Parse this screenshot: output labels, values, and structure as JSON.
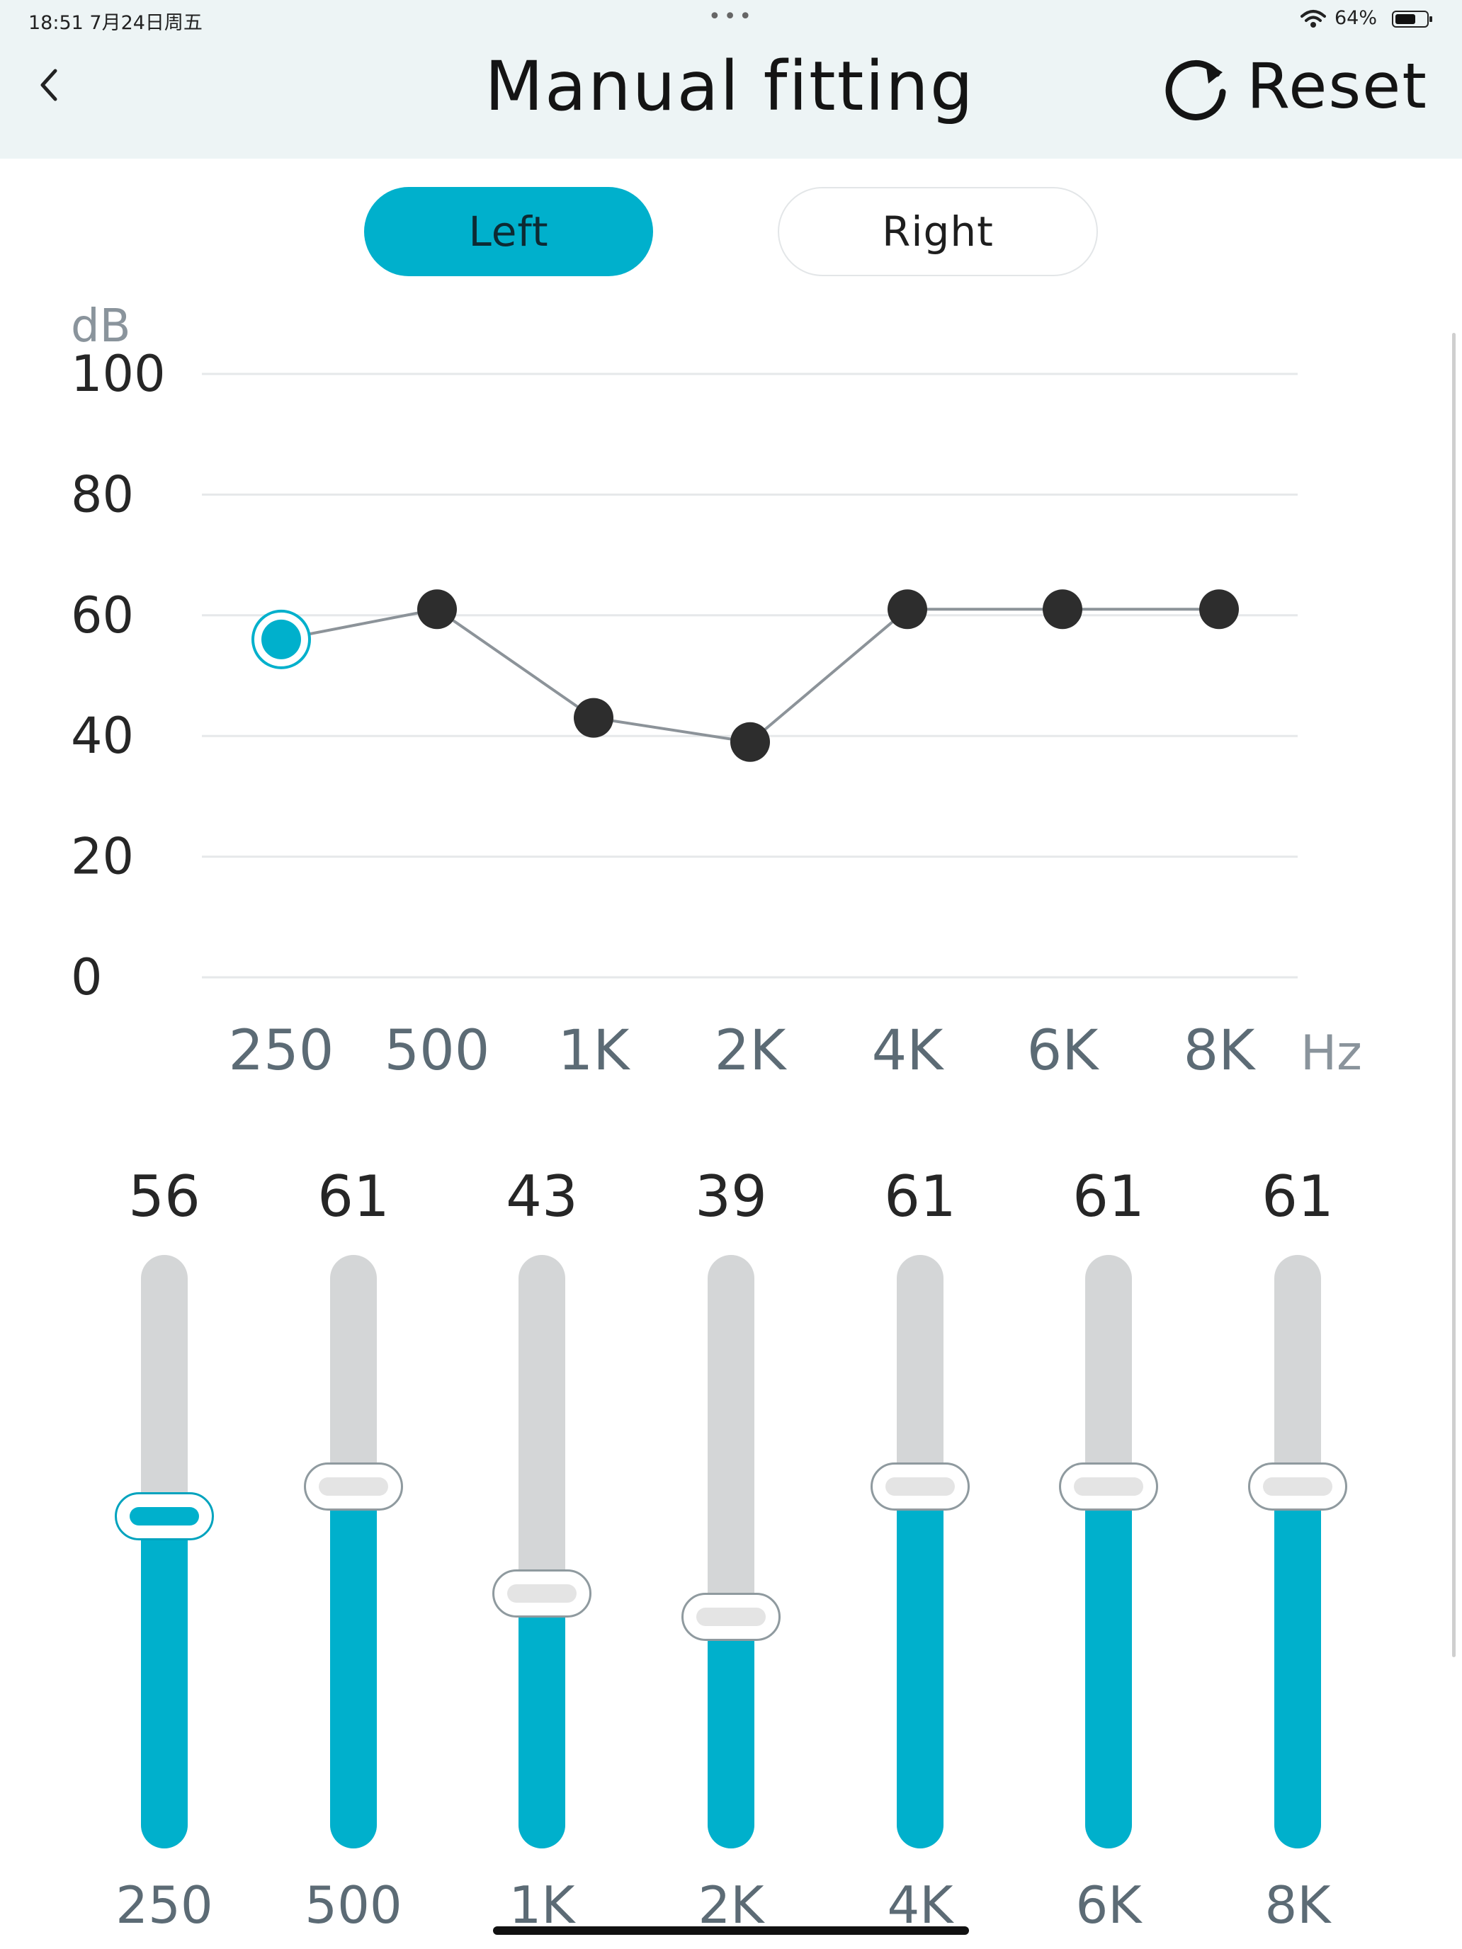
{
  "status_bar": {
    "time": "18:51  7月24日周五",
    "dots": "•••",
    "battery_text": "64%",
    "battery_level": 0.64
  },
  "header": {
    "title": "Manual fitting",
    "back_icon": "chevron-left-icon",
    "reset_icon": "refresh-icon",
    "reset_label": "Reset"
  },
  "tabs": [
    {
      "label": "Left",
      "selected": true
    },
    {
      "label": "Right",
      "selected": false
    }
  ],
  "colors": {
    "accent": "#00b0cc",
    "header_bg": "#edf4f5",
    "point": "#2d2d2d",
    "line": "#8c9399",
    "track": "#d4d6d7"
  },
  "chart_data": {
    "type": "line",
    "ylabel": "dB",
    "xlabel": "Hz",
    "ylim": [
      0,
      100
    ],
    "yticks": [
      "0",
      "20",
      "40",
      "60",
      "80",
      "100"
    ],
    "categories": [
      "250",
      "500",
      "1K",
      "2K",
      "4K",
      "6K",
      "8K"
    ],
    "values": [
      56,
      61,
      43,
      39,
      61,
      61,
      61
    ],
    "selected_index": 0,
    "grid": true
  },
  "sliders": [
    {
      "freq": "250",
      "value": "56",
      "active": true
    },
    {
      "freq": "500",
      "value": "61",
      "active": false
    },
    {
      "freq": "1K",
      "value": "43",
      "active": false
    },
    {
      "freq": "2K",
      "value": "39",
      "active": false
    },
    {
      "freq": "4K",
      "value": "61",
      "active": false
    },
    {
      "freq": "6K",
      "value": "61",
      "active": false
    },
    {
      "freq": "8K",
      "value": "61",
      "active": false
    }
  ]
}
